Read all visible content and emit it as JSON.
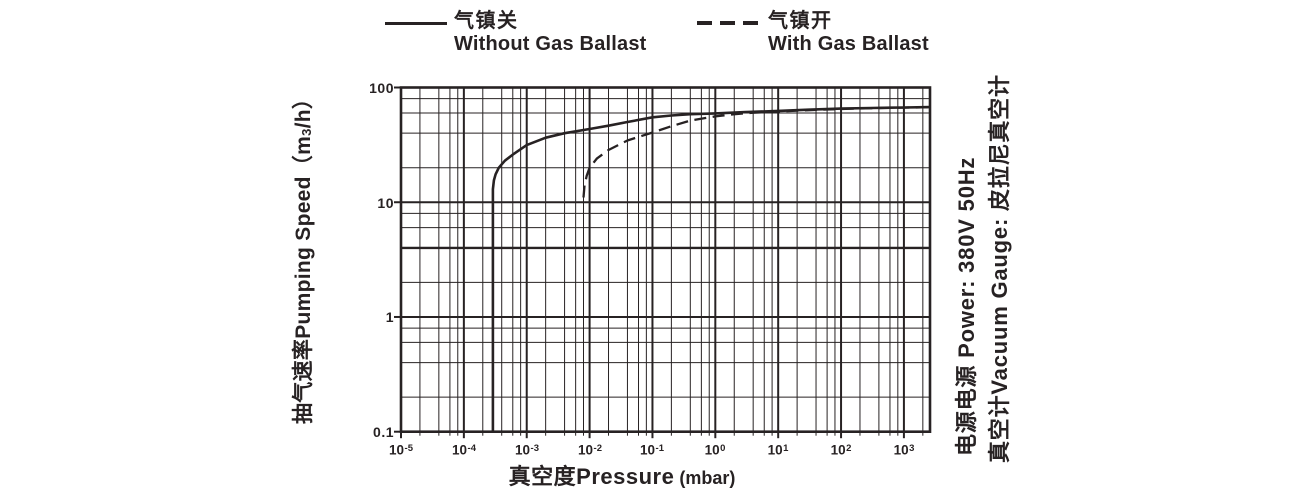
{
  "colors": {
    "ink": "#272223",
    "background": "#ffffff"
  },
  "legend": {
    "without": {
      "label_cn": "气镇关",
      "label_en": "Without Gas Ballast",
      "line_style": "solid"
    },
    "with": {
      "label_cn": "气镇开",
      "label_en": "With Gas Ballast",
      "line_style": "dashed"
    }
  },
  "y_axis": {
    "title_cn": "抽气速率",
    "title_en": "Pumping Speed",
    "unit_open": "（m",
    "unit_sub": "3",
    "unit_close": "/h）",
    "tick_labels": [
      "100",
      "10",
      "1",
      "0.1"
    ]
  },
  "x_axis": {
    "title_cn": "真空度",
    "title_en": "Pressure",
    "unit": "(mbar)",
    "tick_labels": [
      {
        "base": "10",
        "exp": "-5"
      },
      {
        "base": "10",
        "exp": "-4"
      },
      {
        "base": "10",
        "exp": "-3"
      },
      {
        "base": "10",
        "exp": "-2"
      },
      {
        "base": "10",
        "exp": "-1"
      },
      {
        "base": "10",
        "exp": "0"
      },
      {
        "base": "10",
        "exp": "1"
      },
      {
        "base": "10",
        "exp": "2"
      },
      {
        "base": "10",
        "exp": "3"
      }
    ]
  },
  "side_notes": {
    "power": "电源电源  Power: 380V 50Hz",
    "gauge": "真空计Vacuum Gauge: 皮拉尼真空计"
  },
  "chart_data": {
    "type": "line",
    "x_scale": "log",
    "y_scale": "log",
    "title": "",
    "xlabel": "真空度Pressure (mbar)",
    "ylabel": "抽气速率Pumping Speed (m3/h)",
    "xlim": [
      1e-05,
      2600
    ],
    "ylim": [
      0.1,
      100
    ],
    "x_major_ticks": [
      1e-05,
      0.0001,
      0.001,
      0.01,
      0.1,
      1,
      10,
      100,
      1000
    ],
    "y_major_ticks": [
      0.1,
      1,
      10,
      100
    ],
    "minor_gridline_multiples": [
      2,
      4,
      6,
      8
    ],
    "emphasized_y_gridline": 4,
    "grid": true,
    "legend_position": "top",
    "series": [
      {
        "name": "气镇关 Without Gas Ballast",
        "style": "solid",
        "points": [
          [
            0.00029,
            0.1
          ],
          [
            0.00029,
            13
          ],
          [
            0.0003,
            15.5
          ],
          [
            0.00032,
            17.5
          ],
          [
            0.00036,
            20
          ],
          [
            0.00045,
            23
          ],
          [
            0.0006,
            26
          ],
          [
            0.001,
            31.5
          ],
          [
            0.002,
            36.5
          ],
          [
            0.004,
            40
          ],
          [
            0.01,
            43.5
          ],
          [
            0.02,
            46.5
          ],
          [
            0.04,
            50
          ],
          [
            0.1,
            55
          ],
          [
            0.2,
            57
          ],
          [
            0.4,
            58.5
          ],
          [
            1,
            59.5
          ],
          [
            3,
            61
          ],
          [
            10,
            62.5
          ],
          [
            30,
            64
          ],
          [
            100,
            65.5
          ],
          [
            300,
            66.3
          ],
          [
            1000,
            67
          ],
          [
            2600,
            67.5
          ]
        ]
      },
      {
        "name": "气镇开 With Gas Ballast",
        "style": "dashed",
        "points": [
          [
            0.008,
            11
          ],
          [
            0.0083,
            14
          ],
          [
            0.009,
            17
          ],
          [
            0.01,
            20
          ],
          [
            0.013,
            24
          ],
          [
            0.02,
            28.5
          ],
          [
            0.04,
            34.5
          ],
          [
            0.1,
            40.5
          ],
          [
            0.2,
            46
          ],
          [
            0.4,
            51.5
          ],
          [
            1,
            56
          ],
          [
            2,
            58.5
          ],
          [
            4,
            60.3
          ],
          [
            10,
            61.8
          ],
          [
            30,
            63.4
          ],
          [
            100,
            65
          ],
          [
            300,
            66
          ],
          [
            1000,
            66.8
          ],
          [
            2600,
            67.3
          ]
        ]
      }
    ]
  }
}
